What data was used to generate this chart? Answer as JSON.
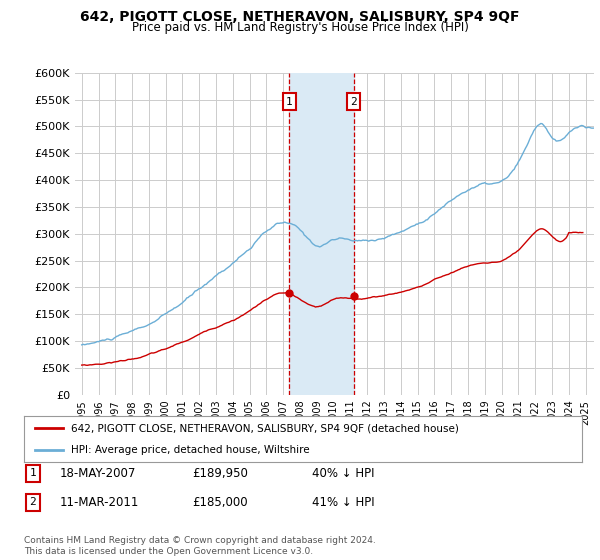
{
  "title": "642, PIGOTT CLOSE, NETHERAVON, SALISBURY, SP4 9QF",
  "subtitle": "Price paid vs. HM Land Registry's House Price Index (HPI)",
  "legend_red": "642, PIGOTT CLOSE, NETHERAVON, SALISBURY, SP4 9QF (detached house)",
  "legend_blue": "HPI: Average price, detached house, Wiltshire",
  "table_row1": [
    "1",
    "18-MAY-2007",
    "£189,950",
    "40% ↓ HPI"
  ],
  "table_row2": [
    "2",
    "11-MAR-2011",
    "£185,000",
    "41% ↓ HPI"
  ],
  "footnote": "Contains HM Land Registry data © Crown copyright and database right 2024.\nThis data is licensed under the Open Government Licence v3.0.",
  "sale1_x": 2007.37,
  "sale1_y": 189950,
  "sale2_x": 2011.19,
  "sale2_y": 185000,
  "hpi_color": "#6baed6",
  "red_color": "#cc0000",
  "vline_color": "#cc0000",
  "shade_color": "#daeaf5",
  "ylim": [
    0,
    600000
  ],
  "ytick_values": [
    0,
    50000,
    100000,
    150000,
    200000,
    250000,
    300000,
    350000,
    400000,
    450000,
    500000,
    550000,
    600000
  ],
  "xlim_start": 1994.6,
  "xlim_end": 2025.5,
  "background_color": "#ffffff",
  "grid_color": "#cccccc"
}
